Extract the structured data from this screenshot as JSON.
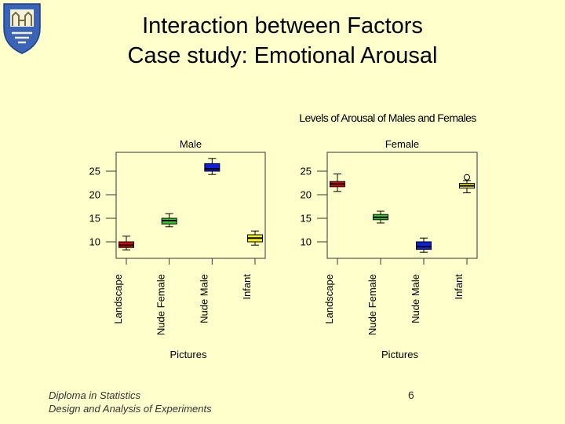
{
  "slide": {
    "title_line1": "Interaction between Factors",
    "title_line2": "Case study: Emotional Arousal",
    "footer_line1": "Diploma in Statistics",
    "footer_line2": "Design and Analysis of Experiments",
    "page_number": "6"
  },
  "colors": {
    "background": "#ffffcc",
    "crest_blue": "#3a64b8",
    "box_red": "#e00000",
    "box_green": "#2ecc2e",
    "box_blue": "#0a1ee6",
    "box_yellow": "#f2ee1a"
  },
  "chart_data": {
    "type": "boxplot",
    "title": "Levels of Arousal of Males and Females",
    "panels": [
      {
        "name": "Male",
        "xlabel": "Pictures",
        "categories": [
          "Landscape",
          "Nude Female",
          "Nude Male",
          "Infant"
        ],
        "colors": [
          "#e00000",
          "#2ecc2e",
          "#0a1ee6",
          "#f2ee1a"
        ],
        "ylim": [
          6.5,
          29
        ],
        "yticks": [
          10,
          15,
          20,
          25
        ],
        "boxes": [
          {
            "min": 8.3,
            "q1": 8.8,
            "median": 9.3,
            "q3": 10.0,
            "max": 11.2
          },
          {
            "min": 13.2,
            "q1": 13.8,
            "median": 14.5,
            "q3": 15.0,
            "max": 16.0
          },
          {
            "min": 24.3,
            "q1": 25.0,
            "median": 25.5,
            "q3": 26.6,
            "max": 27.7
          },
          {
            "min": 9.3,
            "q1": 10.0,
            "median": 10.8,
            "q3": 11.5,
            "max": 12.3
          }
        ]
      },
      {
        "name": "Female",
        "xlabel": "Pictures",
        "categories": [
          "Landscape",
          "Nude Female",
          "Nude Male",
          "Infant"
        ],
        "colors": [
          "#e00000",
          "#2ecc2e",
          "#0a1ee6",
          "#f2ee1a"
        ],
        "ylim": [
          6.5,
          29
        ],
        "yticks": [
          10,
          15,
          20,
          25
        ],
        "boxes": [
          {
            "min": 20.7,
            "q1": 21.7,
            "median": 22.3,
            "q3": 22.8,
            "max": 24.4
          },
          {
            "min": 14.0,
            "q1": 14.7,
            "median": 15.2,
            "q3": 15.8,
            "max": 16.5
          },
          {
            "min": 7.8,
            "q1": 8.4,
            "median": 9.0,
            "q3": 10.0,
            "max": 10.8
          },
          {
            "min": 20.4,
            "q1": 21.4,
            "median": 21.9,
            "q3": 22.4,
            "max": 23.0,
            "outliers": [
              23.7
            ]
          }
        ]
      }
    ]
  }
}
